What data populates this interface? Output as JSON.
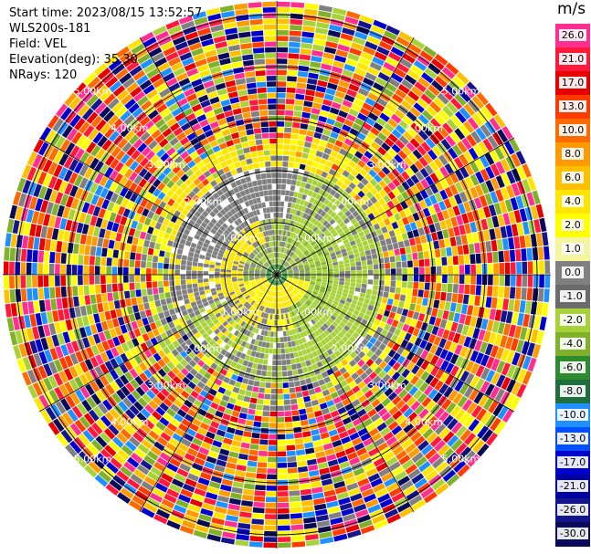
{
  "info": {
    "start_time": "Start time: 2023/08/15 13:52:57",
    "station": "WLS200s-181",
    "field": "Field: VEL",
    "elevation": "Elevation(deg): 35.30",
    "nrays": "NRays: 120"
  },
  "colorbar": {
    "unit": "m/s",
    "ticks": [
      "26.0",
      "21.0",
      "17.0",
      "13.0",
      "10.0",
      "8.0",
      "6.0",
      "4.0",
      "2.0",
      "1.0",
      "0.0",
      "-1.0",
      "-2.0",
      "-4.0",
      "-6.0",
      "-8.0",
      "-10.0",
      "-13.0",
      "-17.0",
      "-21.0",
      "-26.0",
      "-30.0"
    ],
    "colors": [
      "#ff2f92",
      "#ff1a3c",
      "#e80000",
      "#ff3b00",
      "#ff6a00",
      "#ff9a00",
      "#ffc000",
      "#ffe600",
      "#ffff00",
      "#f5f5a0",
      "#808080",
      "#6b6b6b",
      "#a8d23a",
      "#7fb22a",
      "#2e8b2e",
      "#1f6e3e",
      "#1e90ff",
      "#0050ff",
      "#0000cd",
      "#0000a0",
      "#14148c",
      "#0a0a5a"
    ]
  },
  "range_rings": {
    "labels": [
      "1.00km",
      "2.00km",
      "3.00km",
      "4.00km",
      "5.00km"
    ]
  }
}
